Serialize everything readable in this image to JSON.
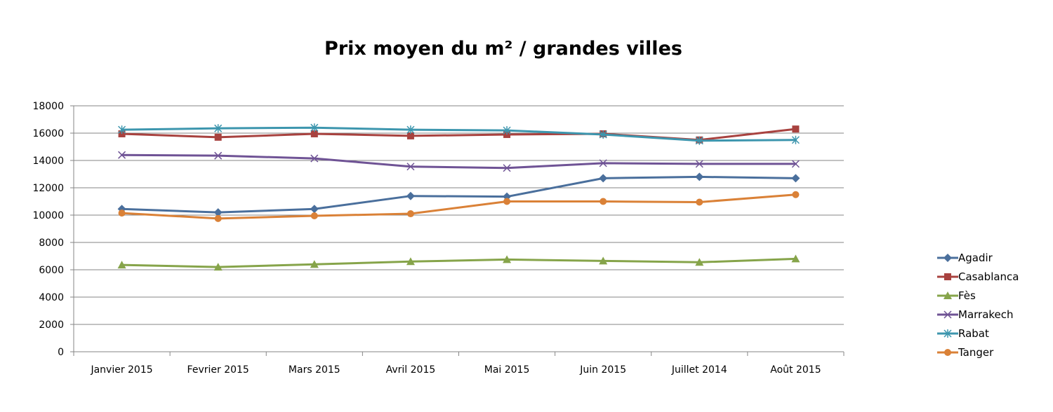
{
  "chart_data": {
    "type": "line",
    "title": "Prix moyen du m² / grandes villes",
    "xlabel": "",
    "ylabel": "",
    "categories": [
      "Janvier 2015",
      "Fevrier 2015",
      "Mars 2015",
      "Avril 2015",
      "Mai 2015",
      "Juin 2015",
      "Juillet 2014",
      "Août 2015"
    ],
    "ylim": [
      0,
      18000
    ],
    "yticks": [
      0,
      2000,
      4000,
      6000,
      8000,
      10000,
      12000,
      14000,
      16000,
      18000
    ],
    "grid": true,
    "legend_position": "right",
    "series": [
      {
        "name": "Agadir",
        "color": "#4a6f9c",
        "marker": "diamond",
        "values": [
          10450,
          10200,
          10450,
          11400,
          11350,
          12700,
          12800,
          12700
        ]
      },
      {
        "name": "Casablanca",
        "color": "#a8423f",
        "marker": "square",
        "values": [
          15950,
          15700,
          15950,
          15800,
          15900,
          15950,
          15500,
          16300
        ]
      },
      {
        "name": "Fès",
        "color": "#86a44a",
        "marker": "triangle",
        "values": [
          6350,
          6200,
          6400,
          6600,
          6750,
          6650,
          6550,
          6800
        ]
      },
      {
        "name": "Marrakech",
        "color": "#6f5395",
        "marker": "x",
        "values": [
          14400,
          14350,
          14150,
          13550,
          13450,
          13800,
          13750,
          13750
        ]
      },
      {
        "name": "Rabat",
        "color": "#3d96ae",
        "marker": "star",
        "values": [
          16250,
          16350,
          16400,
          16250,
          16200,
          15900,
          15450,
          15500
        ]
      },
      {
        "name": "Tanger",
        "color": "#da8137",
        "marker": "circle",
        "values": [
          10150,
          9750,
          9950,
          10100,
          11000,
          11000,
          10950,
          11500
        ]
      }
    ]
  }
}
